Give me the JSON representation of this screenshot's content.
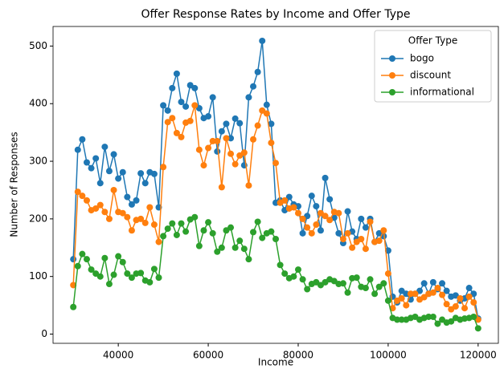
{
  "chart_data": {
    "type": "line",
    "title": "Offer Response Rates by Income and Offer Type",
    "x_label": "Income",
    "y_label": "Number of Responses",
    "legend_title": "Offer Type",
    "legend": "upper right",
    "x": [
      30000,
      31000,
      32000,
      33000,
      34000,
      35000,
      36000,
      37000,
      38000,
      39000,
      40000,
      41000,
      42000,
      43000,
      44000,
      45000,
      46000,
      47000,
      48000,
      49000,
      50000,
      51000,
      52000,
      53000,
      54000,
      55000,
      56000,
      57000,
      58000,
      59000,
      60000,
      61000,
      62000,
      63000,
      64000,
      65000,
      66000,
      67000,
      68000,
      69000,
      70000,
      71000,
      72000,
      73000,
      74000,
      75000,
      76000,
      77000,
      78000,
      79000,
      80000,
      81000,
      82000,
      83000,
      84000,
      85000,
      86000,
      87000,
      88000,
      89000,
      90000,
      91000,
      92000,
      93000,
      94000,
      95000,
      96000,
      97000,
      98000,
      99000,
      100000,
      101000,
      102000,
      103000,
      104000,
      105000,
      106000,
      107000,
      108000,
      109000,
      110000,
      111000,
      112000,
      113000,
      114000,
      115000,
      116000,
      117000,
      118000,
      119000,
      120000
    ],
    "series": [
      {
        "name": "bogo",
        "color": "#1f77b4",
        "values": [
          130,
          320,
          338,
          298,
          288,
          305,
          262,
          325,
          283,
          312,
          270,
          281,
          238,
          225,
          232,
          279,
          262,
          281,
          278,
          220,
          397,
          388,
          427,
          452,
          403,
          395,
          432,
          427,
          392,
          375,
          378,
          411,
          317,
          352,
          365,
          340,
          374,
          366,
          293,
          411,
          430,
          455,
          509,
          398,
          365,
          228,
          232,
          215,
          238,
          225,
          222,
          175,
          205,
          240,
          222,
          180,
          271,
          234,
          202,
          175,
          158,
          213,
          178,
          165,
          200,
          185,
          200,
          160,
          175,
          170,
          145,
          65,
          55,
          75,
          70,
          60,
          70,
          75,
          88,
          70,
          90,
          78,
          88,
          75,
          65,
          67,
          58,
          62,
          80,
          70,
          27
        ]
      },
      {
        "name": "discount",
        "color": "#ff7f0e",
        "values": [
          85,
          247,
          240,
          232,
          215,
          218,
          224,
          212,
          200,
          250,
          212,
          210,
          203,
          180,
          198,
          200,
          193,
          220,
          190,
          160,
          290,
          368,
          375,
          349,
          342,
          367,
          370,
          397,
          320,
          293,
          323,
          335,
          335,
          255,
          340,
          313,
          295,
          310,
          315,
          258,
          338,
          362,
          388,
          383,
          332,
          297,
          228,
          232,
          218,
          220,
          210,
          200,
          185,
          175,
          190,
          210,
          205,
          198,
          212,
          210,
          165,
          175,
          150,
          160,
          165,
          148,
          195,
          160,
          162,
          180,
          105,
          45,
          58,
          62,
          50,
          70,
          70,
          60,
          64,
          70,
          72,
          80,
          68,
          52,
          43,
          48,
          62,
          45,
          65,
          55,
          25
        ]
      },
      {
        "name": "informational",
        "color": "#2ca02c",
        "values": [
          47,
          118,
          139,
          130,
          112,
          105,
          100,
          132,
          87,
          103,
          135,
          125,
          105,
          98,
          105,
          106,
          93,
          90,
          113,
          98,
          170,
          183,
          192,
          172,
          192,
          178,
          199,
          203,
          153,
          180,
          194,
          175,
          143,
          150,
          180,
          185,
          150,
          162,
          148,
          130,
          177,
          195,
          167,
          175,
          178,
          165,
          120,
          105,
          97,
          100,
          112,
          95,
          78,
          87,
          90,
          85,
          90,
          95,
          92,
          87,
          88,
          72,
          97,
          98,
          82,
          80,
          95,
          70,
          82,
          88,
          58,
          28,
          25,
          25,
          25,
          28,
          30,
          25,
          28,
          30,
          30,
          18,
          25,
          20,
          22,
          28,
          25,
          27,
          28,
          30,
          10
        ]
      }
    ],
    "xlim": [
      25500,
      124500
    ],
    "xticks": [
      40000,
      60000,
      80000,
      100000,
      120000
    ],
    "ylim": [
      -16,
      534
    ],
    "yticks": [
      0,
      100,
      200,
      300,
      400,
      500
    ]
  }
}
